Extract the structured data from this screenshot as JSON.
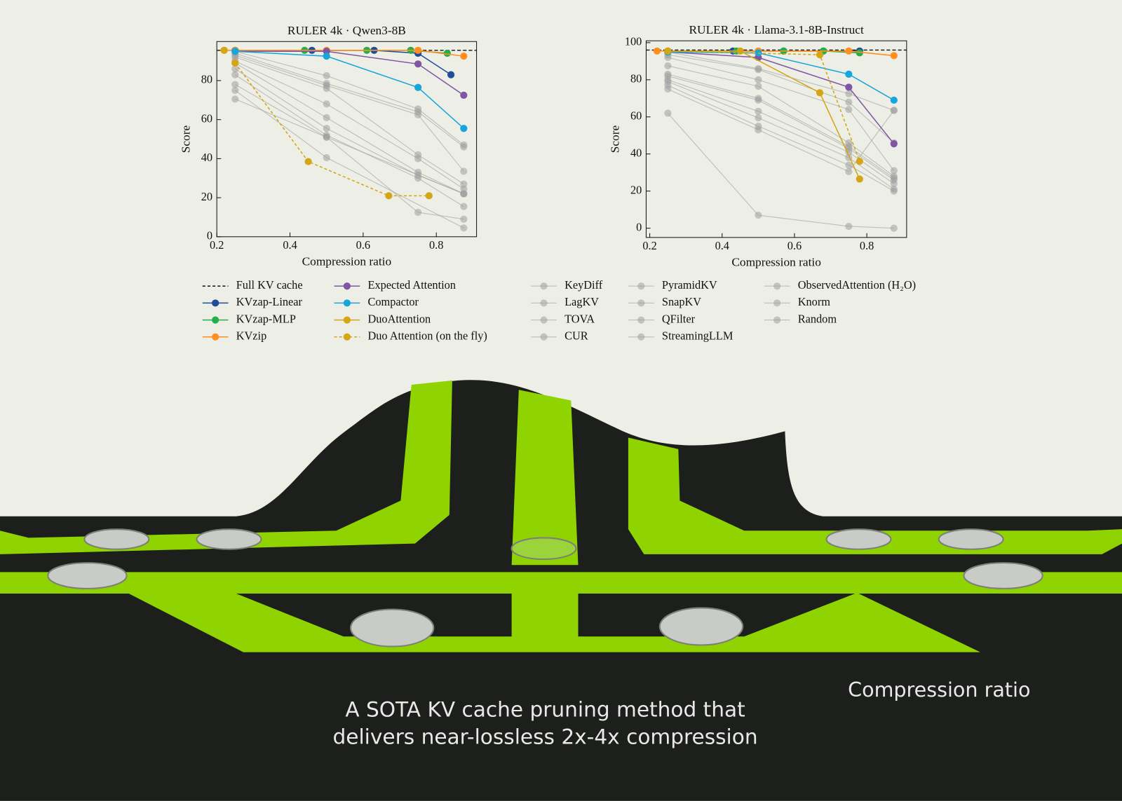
{
  "chart_data": [
    {
      "type": "line",
      "title": "RULER 4k · Qwen3-8B",
      "x_label": "Compression ratio",
      "y_label": "Score",
      "xlim": [
        0.2,
        0.91
      ],
      "ylim": [
        0,
        100
      ],
      "xticks": [
        0.2,
        0.4,
        0.6,
        0.8
      ],
      "yticks": [
        0,
        20,
        40,
        60,
        80
      ],
      "series": [
        {
          "name": "Full KV cache",
          "color": "#111111",
          "dashed": true,
          "value": 95.5
        },
        {
          "name": "KVzap-Linear",
          "color": "#1f4e99",
          "x": [
            0.25,
            0.46,
            0.63,
            0.75,
            0.84
          ],
          "values": [
            95.5,
            95.5,
            95.5,
            94,
            83
          ]
        },
        {
          "name": "KVzap-MLP",
          "color": "#22b04b",
          "x": [
            0.25,
            0.44,
            0.61,
            0.73,
            0.83
          ],
          "values": [
            95.5,
            95.5,
            95.5,
            95.5,
            94
          ]
        },
        {
          "name": "KVzip",
          "color": "#ff8f1f",
          "x": [
            0.22,
            0.25,
            0.5,
            0.75,
            0.875
          ],
          "values": [
            95.5,
            95.5,
            95.5,
            95.5,
            92.5
          ]
        },
        {
          "name": "Expected Attention",
          "color": "#7e56a4",
          "x": [
            0.25,
            0.5,
            0.75,
            0.875
          ],
          "values": [
            95,
            95,
            88.5,
            72.5
          ]
        },
        {
          "name": "Compactor",
          "color": "#15a6db",
          "x": [
            0.25,
            0.5,
            0.75,
            0.875
          ],
          "values": [
            95,
            92.5,
            76.5,
            55.5
          ]
        },
        {
          "name": "DuoAttention",
          "color": "#d4a514",
          "x": [
            0.22
          ],
          "values": [
            95.5
          ]
        },
        {
          "name": "Duo Attention (on the fly)",
          "color": "#d4a514",
          "dashed": true,
          "x": [
            0.25,
            0.45,
            0.67,
            0.78
          ],
          "values": [
            89,
            38.5,
            21,
            21
          ]
        },
        {
          "name": "KeyDiff",
          "color": "#9e9e9e",
          "x": [
            0.25,
            0.5,
            0.75,
            0.875
          ],
          "values": [
            95,
            82.5,
            65.5,
            47
          ]
        },
        {
          "name": "LagKV",
          "color": "#9e9e9e",
          "x": [
            0.25,
            0.5,
            0.75,
            0.875
          ],
          "values": [
            94,
            78.5,
            64,
            46
          ]
        },
        {
          "name": "TOVA",
          "color": "#9e9e9e",
          "x": [
            0.25,
            0.5,
            0.75,
            0.875
          ],
          "values": [
            93,
            77.5,
            62.5,
            33.5
          ]
        },
        {
          "name": "CUR",
          "color": "#9e9e9e",
          "x": [
            0.25,
            0.5,
            0.75,
            0.875
          ],
          "values": [
            92,
            76,
            42,
            27
          ]
        },
        {
          "name": "PyramidKV",
          "color": "#9e9e9e",
          "x": [
            0.25,
            0.5,
            0.75,
            0.875
          ],
          "values": [
            90,
            68,
            40,
            24.5
          ]
        },
        {
          "name": "SnapKV",
          "color": "#9e9e9e",
          "x": [
            0.25,
            0.5,
            0.75,
            0.875
          ],
          "values": [
            89,
            61,
            33,
            22
          ]
        },
        {
          "name": "QFilter",
          "color": "#9e9e9e",
          "x": [
            0.25,
            0.5,
            0.75,
            0.875
          ],
          "values": [
            86,
            55.5,
            31.5,
            22
          ]
        },
        {
          "name": "StreamingLLM",
          "color": "#9e9e9e",
          "x": [
            0.25,
            0.5,
            0.75,
            0.875
          ],
          "values": [
            83,
            52,
            30,
            15.5
          ]
        },
        {
          "name": "ObservedAttention (H₂O)",
          "color": "#9e9e9e",
          "x": [
            0.25,
            0.5,
            0.75,
            0.875
          ],
          "values": [
            78,
            51,
            12.5,
            9
          ]
        },
        {
          "name": "Knorm",
          "color": "#9e9e9e",
          "x": [
            0.25,
            0.5,
            0.875
          ],
          "values": [
            75,
            40.5,
            4.5
          ]
        },
        {
          "name": "Random",
          "color": "#9e9e9e",
          "x": [
            0.25,
            0.5,
            0.875
          ],
          "values": [
            70.5,
            51,
            22
          ]
        }
      ]
    },
    {
      "type": "line",
      "title": "RULER 4k · Llama-3.1-8B-Instruct",
      "x_label": "Compression ratio",
      "y_label": "Score",
      "xlim": [
        0.19,
        0.91
      ],
      "ylim": [
        -5,
        101
      ],
      "xticks": [
        0.2,
        0.4,
        0.6,
        0.8
      ],
      "yticks": [
        0,
        20,
        40,
        60,
        80,
        100
      ],
      "series": [
        {
          "name": "Full KV cache",
          "color": "#111111",
          "dashed": true,
          "value": 96
        },
        {
          "name": "KVzap-Linear",
          "color": "#1f4e99",
          "x": [
            0.43,
            0.57,
            0.68,
            0.78
          ],
          "values": [
            95.5,
            95.5,
            95.5,
            95.5
          ]
        },
        {
          "name": "KVzap-MLP",
          "color": "#22b04b",
          "x": [
            0.44,
            0.57,
            0.68,
            0.78
          ],
          "values": [
            95.5,
            95.5,
            95.5,
            94.5
          ]
        },
        {
          "name": "KVzip",
          "color": "#ff8f1f",
          "x": [
            0.22,
            0.25,
            0.5,
            0.75,
            0.875
          ],
          "values": [
            95.5,
            95.5,
            95.5,
            95.5,
            93
          ]
        },
        {
          "name": "Expected Attention",
          "color": "#7e56a4",
          "x": [
            0.25,
            0.5,
            0.75,
            0.875
          ],
          "values": [
            95,
            92,
            76,
            45.5
          ]
        },
        {
          "name": "Compactor",
          "color": "#15a6db",
          "x": [
            0.25,
            0.5,
            0.75,
            0.875
          ],
          "values": [
            95,
            94.5,
            83,
            69
          ]
        },
        {
          "name": "DuoAttention",
          "color": "#d4a514",
          "x": [
            0.25,
            0.45,
            0.67,
            0.78
          ],
          "values": [
            95.5,
            95.5,
            73,
            26.5
          ]
        },
        {
          "name": "Duo Attention (on the fly)",
          "color": "#d4a514",
          "dashed": true,
          "x": [
            0.25,
            0.67,
            0.78
          ],
          "values": [
            95.5,
            93.5,
            36
          ]
        },
        {
          "name": "KeyDiff",
          "color": "#9e9e9e",
          "x": [
            0.25,
            0.5,
            0.75,
            0.875
          ],
          "values": [
            95,
            86,
            72.5,
            63.5
          ]
        },
        {
          "name": "LagKV",
          "color": "#9e9e9e",
          "x": [
            0.25,
            0.5,
            0.75,
            0.875
          ],
          "values": [
            93.5,
            85.5,
            68,
            46
          ]
        },
        {
          "name": "TOVA",
          "color": "#9e9e9e",
          "x": [
            0.25,
            0.5,
            0.75,
            0.875
          ],
          "values": [
            92,
            80,
            64,
            31
          ]
        },
        {
          "name": "CUR",
          "color": "#9e9e9e",
          "x": [
            0.25,
            0.5,
            0.75,
            0.875
          ],
          "values": [
            87.5,
            76.5,
            46,
            28
          ]
        },
        {
          "name": "PyramidKV",
          "color": "#9e9e9e",
          "x": [
            0.25,
            0.5,
            0.75,
            0.875
          ],
          "values": [
            83,
            70,
            44,
            27
          ]
        },
        {
          "name": "SnapKV",
          "color": "#9e9e9e",
          "x": [
            0.25,
            0.5,
            0.75,
            0.875
          ],
          "values": [
            82,
            69,
            43,
            26
          ]
        },
        {
          "name": "QFilter",
          "color": "#9e9e9e",
          "x": [
            0.25,
            0.5,
            0.75,
            0.875
          ],
          "values": [
            80,
            63,
            41,
            24
          ]
        },
        {
          "name": "StreamingLLM",
          "color": "#9e9e9e",
          "x": [
            0.25,
            0.5,
            0.75,
            0.875
          ],
          "values": [
            79,
            59.5,
            38,
            21
          ]
        },
        {
          "name": "ObservedAttention (H₂O)",
          "color": "#9e9e9e",
          "x": [
            0.25,
            0.5,
            0.75,
            0.875
          ],
          "values": [
            77,
            55,
            34,
            20
          ]
        },
        {
          "name": "Knorm",
          "color": "#9e9e9e",
          "x": [
            0.25,
            0.5,
            0.75,
            0.875
          ],
          "values": [
            75,
            53,
            30.5,
            63.5
          ]
        },
        {
          "name": "Random",
          "color": "#9e9e9e",
          "x": [
            0.25,
            0.5,
            0.75,
            0.875
          ],
          "values": [
            62,
            7,
            1,
            0
          ]
        }
      ]
    }
  ],
  "caption": [
    "A SOTA KV cache pruning method that",
    "delivers near-lossless 2x-4x compression"
  ],
  "overlay_label": "Compression ratio"
}
